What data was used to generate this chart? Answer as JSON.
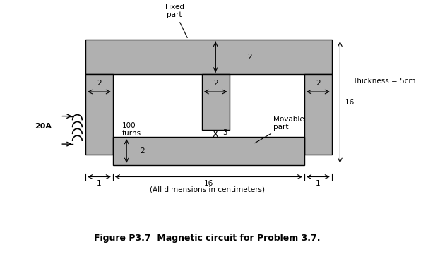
{
  "background_color": "#ffffff",
  "gray_color": "#b0b0b0",
  "gray_dark": "#909090",
  "figure_title": "Figure P3.7  Magnetic circuit for Problem 3.7.",
  "subtitle": "(All dimensions in centimeters)",
  "annotation_thickness": "Thickness = 5cm",
  "annotation_16": "16",
  "label_20A": "20A",
  "label_turns": "100\nturns",
  "label_fixed": "Fixed\npart",
  "label_movable": "Movable\npart",
  "dim_labels": {
    "top_2": "2",
    "left_2": "2",
    "center_2": "2",
    "right_2": "2",
    "gap_3": "3",
    "bottom_2": "2",
    "bottom_16": "16",
    "bottom_1_left": "1",
    "bottom_1_right": "1"
  }
}
